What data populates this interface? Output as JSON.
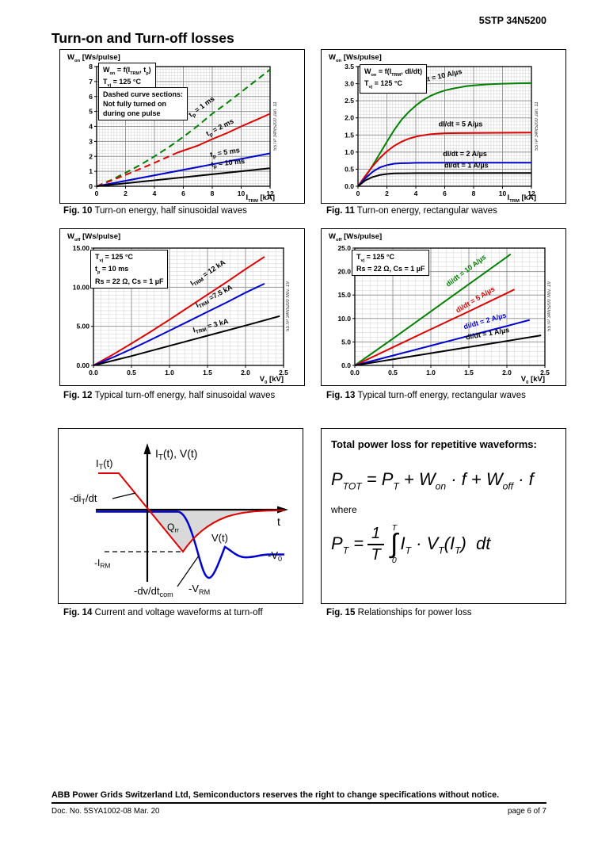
{
  "header": {
    "doc_number": "5STP 34N5200"
  },
  "page_title": "Turn-on and Turn-off losses",
  "chart_data": [
    {
      "id": "fig10",
      "type": "line",
      "fig_label": "Fig. 10",
      "caption": "Turn-on energy, half sinusoidal waves",
      "ylabel": "W~on~ [Ws/pulse]",
      "xlabel": "I~TRM~ [kA]",
      "xlim": [
        0,
        12
      ],
      "ylim": [
        0,
        8
      ],
      "xticks": [
        0,
        2,
        4,
        6,
        8,
        10,
        12
      ],
      "xtick_labels": [
        "0",
        "2",
        "4",
        "6",
        "8",
        "10",
        "12"
      ],
      "yticks": [
        0,
        1,
        2,
        3,
        4,
        5,
        6,
        7,
        8
      ],
      "ytick_labels": [
        "0",
        "1",
        "2",
        "3",
        "4",
        "5",
        "6",
        "7",
        "8"
      ],
      "xminor": 0.2,
      "yminor": 0.2,
      "grid": true,
      "notes": [
        [
          "W~on~ = f(I~TRM~, t~p~)",
          "T~vj~ = 125 °C"
        ],
        [
          "Dashed curve sections:",
          "Not fully turned on",
          "during one pulse"
        ]
      ],
      "side_text": "5STP 34N5200 Jan. 11",
      "series": [
        {
          "name": "tp = 1 ms",
          "color": "#008000",
          "dash": true,
          "points": [
            [
              0,
              0
            ],
            [
              1,
              0.42
            ],
            [
              2,
              0.9
            ],
            [
              3,
              1.42
            ],
            [
              4,
              2.0
            ],
            [
              5,
              2.62
            ],
            [
              6,
              3.3
            ],
            [
              7,
              4.05
            ],
            [
              8,
              4.85
            ],
            [
              9,
              5.55
            ],
            [
              10,
              6.3
            ],
            [
              11,
              7.05
            ],
            [
              12,
              7.8
            ]
          ]
        },
        {
          "name": "tp = 2 ms (not fully turned on)",
          "color": "#dd0000",
          "dash": true,
          "points": [
            [
              0,
              0
            ],
            [
              1,
              0.37
            ],
            [
              2,
              0.76
            ],
            [
              3,
              1.16
            ],
            [
              4,
              1.57
            ],
            [
              5,
              2.0
            ],
            [
              5.6,
              2.25
            ]
          ]
        },
        {
          "name": "tp = 2 ms",
          "color": "#dd0000",
          "dash": false,
          "points": [
            [
              5.6,
              2.25
            ],
            [
              7,
              2.72
            ],
            [
              8,
              3.15
            ],
            [
              9,
              3.55
            ],
            [
              10,
              4.0
            ],
            [
              11,
              4.42
            ],
            [
              12,
              4.85
            ]
          ]
        },
        {
          "name": "tp = 5 ms",
          "color": "#0000cc",
          "dash": false,
          "points": [
            [
              0,
              0
            ],
            [
              12,
              2.2
            ]
          ]
        },
        {
          "name": "tp = 10 ms",
          "color": "#000000",
          "dash": false,
          "points": [
            [
              0,
              0
            ],
            [
              12,
              1.2
            ]
          ]
        }
      ],
      "curve_labels": [
        {
          "text": "t~p~ = 1 ms",
          "x": 7.35,
          "y": 5.2,
          "rot": -36,
          "color": "#000000"
        },
        {
          "text": "t~p~ = 2 ms",
          "x": 8.6,
          "y": 3.8,
          "rot": -27,
          "color": "#000000"
        },
        {
          "text": "t~p~ = 5 ms",
          "x": 8.9,
          "y": 2.12,
          "rot": -9,
          "color": "#000000"
        },
        {
          "text": "t~p~ = 10 ms",
          "x": 9.1,
          "y": 1.42,
          "rot": -6,
          "color": "#000000"
        }
      ]
    },
    {
      "id": "fig11",
      "type": "line",
      "fig_label": "Fig. 11",
      "caption": "Turn-on energy, rectangular waves",
      "ylabel": "W~on~ [Ws/pulse]",
      "xlabel": "I~TRM~ [kA]",
      "xlim": [
        0,
        12
      ],
      "ylim": [
        0,
        3.5
      ],
      "xticks": [
        0,
        2,
        4,
        6,
        8,
        10,
        12
      ],
      "xtick_labels": [
        "0",
        "2",
        "4",
        "6",
        "8",
        "10",
        "12"
      ],
      "yticks": [
        0,
        0.5,
        1,
        1.5,
        2,
        2.5,
        3,
        3.5
      ],
      "ytick_labels": [
        "0.0",
        "0.5",
        "1.0",
        "1.5",
        "2.0",
        "2.5",
        "3.0",
        "3.5"
      ],
      "xminor": 0.2,
      "yminor": 0.1,
      "grid": true,
      "notes": [
        [
          "W~on~ = f(I~TRM~, dI/dt)",
          "T~vj~ = 125 °C"
        ]
      ],
      "side_text": "5STP 34N5200 Jan. 11",
      "series": [
        {
          "name": "dI/dt = 10 A/µs",
          "color": "#008000",
          "dash": false,
          "points": [
            [
              0,
              0
            ],
            [
              0.5,
              0.27
            ],
            [
              1,
              0.6
            ],
            [
              1.5,
              0.95
            ],
            [
              2,
              1.3
            ],
            [
              2.5,
              1.64
            ],
            [
              3,
              1.94
            ],
            [
              3.5,
              2.17
            ],
            [
              4,
              2.36
            ],
            [
              4.5,
              2.52
            ],
            [
              5,
              2.64
            ],
            [
              5.5,
              2.73
            ],
            [
              6,
              2.8
            ],
            [
              6.5,
              2.85
            ],
            [
              7,
              2.89
            ],
            [
              7.5,
              2.93
            ],
            [
              8,
              2.95
            ],
            [
              9,
              2.98
            ],
            [
              10,
              3.0
            ],
            [
              11,
              3.01
            ],
            [
              12,
              3.02
            ]
          ]
        },
        {
          "name": "dI/dt = 5 A/µs",
          "color": "#dd0000",
          "dash": false,
          "points": [
            [
              0,
              0
            ],
            [
              0.5,
              0.3
            ],
            [
              1,
              0.58
            ],
            [
              1.5,
              0.82
            ],
            [
              2,
              1.02
            ],
            [
              2.5,
              1.18
            ],
            [
              3,
              1.3
            ],
            [
              3.5,
              1.39
            ],
            [
              4,
              1.45
            ],
            [
              4.5,
              1.49
            ],
            [
              5,
              1.52
            ],
            [
              5.5,
              1.54
            ],
            [
              6,
              1.55
            ],
            [
              7,
              1.555
            ],
            [
              8,
              1.56
            ],
            [
              10,
              1.565
            ],
            [
              12,
              1.57
            ]
          ]
        },
        {
          "name": "dI/dt = 2 A/µs",
          "color": "#0000cc",
          "dash": false,
          "points": [
            [
              0,
              0
            ],
            [
              0.5,
              0.23
            ],
            [
              1,
              0.42
            ],
            [
              1.5,
              0.55
            ],
            [
              2,
              0.62
            ],
            [
              2.5,
              0.66
            ],
            [
              3,
              0.675
            ],
            [
              3.5,
              0.68
            ],
            [
              4,
              0.685
            ],
            [
              6,
              0.69
            ],
            [
              12,
              0.69
            ]
          ]
        },
        {
          "name": "dI/dt = 1 A/µs",
          "color": "#000000",
          "dash": false,
          "points": [
            [
              0,
              0
            ],
            [
              0.5,
              0.17
            ],
            [
              1,
              0.27
            ],
            [
              1.5,
              0.33
            ],
            [
              2,
              0.36
            ],
            [
              2.5,
              0.375
            ],
            [
              3,
              0.38
            ],
            [
              4,
              0.385
            ],
            [
              12,
              0.39
            ]
          ]
        }
      ],
      "curve_labels": [
        {
          "text": "dI/dt = 10 A/µs",
          "x": 5.6,
          "y": 3.14,
          "rot": -13,
          "color": "#000000"
        },
        {
          "text": "dI/dt = 5 A/µs",
          "x": 7.1,
          "y": 1.75,
          "rot": 0,
          "color": "#000000"
        },
        {
          "text": "dI/dt = 2 A/µs",
          "x": 7.4,
          "y": 0.88,
          "rot": 0,
          "color": "#000000"
        },
        {
          "text": "dI/dt = 1 A/µs",
          "x": 7.5,
          "y": 0.55,
          "rot": 0,
          "color": "#000000"
        }
      ]
    },
    {
      "id": "fig12",
      "type": "line",
      "fig_label": "Fig. 12",
      "caption": "Typical turn-off energy, half sinusoidal waves",
      "ylabel": "W~off~ [Ws/pulse]",
      "xlabel": "V~0~ [kV]",
      "xlim": [
        0,
        2.5
      ],
      "ylim": [
        0,
        15
      ],
      "xticks": [
        0,
        0.5,
        1,
        1.5,
        2,
        2.5
      ],
      "xtick_labels": [
        "0.0",
        "0.5",
        "1.0",
        "1.5",
        "2.0",
        "2.5"
      ],
      "yticks": [
        0,
        5,
        10,
        15
      ],
      "ytick_labels": [
        "0.00",
        "5.00",
        "10.00",
        "15.00"
      ],
      "xminor": 0.1,
      "yminor": 0.5,
      "grid": true,
      "notes": [
        [
          "T~vj~ = 125 °C",
          "t~p~ = 10 ms",
          "Rs = 22 Ω, Cs = 1 µF"
        ]
      ],
      "side_text": "5STP 34N5200 Nov. 19",
      "series": [
        {
          "name": "ITRM = 12 kA",
          "color": "#dd0000",
          "dash": false,
          "points": [
            [
              0,
              0
            ],
            [
              0.25,
              1.35
            ],
            [
              0.5,
              2.8
            ],
            [
              0.75,
              4.3
            ],
            [
              1,
              5.85
            ],
            [
              1.25,
              7.45
            ],
            [
              1.5,
              9.05
            ],
            [
              1.75,
              10.65
            ],
            [
              2,
              12.3
            ],
            [
              2.25,
              13.9
            ]
          ]
        },
        {
          "name": "ITRM = 7.5 kA",
          "color": "#0000cc",
          "dash": false,
          "points": [
            [
              0,
              0
            ],
            [
              0.25,
              1.0
            ],
            [
              0.5,
              2.1
            ],
            [
              0.75,
              3.25
            ],
            [
              1,
              4.45
            ],
            [
              1.25,
              5.65
            ],
            [
              1.5,
              6.85
            ],
            [
              1.75,
              8.05
            ],
            [
              2,
              9.3
            ],
            [
              2.25,
              10.45
            ]
          ]
        },
        {
          "name": "ITRM = 3 kA",
          "color": "#000000",
          "dash": false,
          "points": [
            [
              0,
              0
            ],
            [
              0.5,
              1.2
            ],
            [
              1,
              2.5
            ],
            [
              1.5,
              3.8
            ],
            [
              2,
              5.1
            ],
            [
              2.45,
              6.3
            ]
          ]
        }
      ],
      "curve_labels": [
        {
          "text": "I~TRM~ = 12 kA",
          "x": 1.52,
          "y": 11.6,
          "rot": -34,
          "color": "#000000"
        },
        {
          "text": "I~TRM~ =7.5 kA",
          "x": 1.6,
          "y": 8.6,
          "rot": -28,
          "color": "#000000"
        },
        {
          "text": "I~TRM~ = 3 kA",
          "x": 1.55,
          "y": 4.8,
          "rot": -15,
          "color": "#000000"
        }
      ]
    },
    {
      "id": "fig13",
      "type": "line",
      "fig_label": "Fig. 13",
      "caption": "Typical turn-off energy, rectangular waves",
      "ylabel": "W~off~ [Ws/pulse]",
      "xlabel": "V~0~ [kV]",
      "xlim": [
        0,
        2.5
      ],
      "ylim": [
        0,
        25
      ],
      "xticks": [
        0,
        0.5,
        1,
        1.5,
        2,
        2.5
      ],
      "xtick_labels": [
        "0.0",
        "0.5",
        "1.0",
        "1.5",
        "2.0",
        "2.5"
      ],
      "yticks": [
        0,
        5,
        10,
        15,
        20,
        25
      ],
      "ytick_labels": [
        "0.0",
        "5.0",
        "10.0",
        "15.0",
        "20.0",
        "25.0"
      ],
      "xminor": 0.1,
      "yminor": 1,
      "grid": true,
      "notes": [
        [
          "T~vj~ = 125 °C",
          "Rs = 22 Ω, Cs = 1 µF"
        ]
      ],
      "side_text": "5STP 34N5200 Nov. 19",
      "series": [
        {
          "name": "di/dt = 10 A/µs",
          "color": "#008000",
          "dash": false,
          "points": [
            [
              0,
              0
            ],
            [
              0.5,
              5.7
            ],
            [
              1,
              11.5
            ],
            [
              1.5,
              17.3
            ],
            [
              2,
              23.1
            ],
            [
              2.05,
              23.7
            ]
          ]
        },
        {
          "name": "di/dt = 5 A/µs",
          "color": "#dd0000",
          "dash": false,
          "points": [
            [
              0,
              0
            ],
            [
              0.5,
              3.85
            ],
            [
              1,
              7.7
            ],
            [
              1.5,
              11.5
            ],
            [
              2,
              15.4
            ],
            [
              2.1,
              16.2
            ]
          ]
        },
        {
          "name": "di/dt = 2 A/µs",
          "color": "#0000cc",
          "dash": false,
          "points": [
            [
              0,
              0
            ],
            [
              0.5,
              2.1
            ],
            [
              1,
              4.2
            ],
            [
              1.5,
              6.3
            ],
            [
              2,
              8.4
            ],
            [
              2.3,
              9.7
            ]
          ]
        },
        {
          "name": "di/dt = 1 A/µs",
          "color": "#000000",
          "dash": false,
          "points": [
            [
              0,
              0
            ],
            [
              0.5,
              1.3
            ],
            [
              1,
              2.6
            ],
            [
              1.5,
              3.9
            ],
            [
              2,
              5.2
            ],
            [
              2.45,
              6.4
            ]
          ]
        }
      ],
      "curve_labels": [
        {
          "text": "di/dt = 10 A/µs",
          "x": 1.48,
          "y": 19.8,
          "rot": -37,
          "color": "#008000"
        },
        {
          "text": "di/dt = 5 A/µs",
          "x": 1.6,
          "y": 13.6,
          "rot": -31,
          "color": "#dd0000"
        },
        {
          "text": "di/dt = 2 A/µs",
          "x": 1.72,
          "y": 9.0,
          "rot": -16,
          "color": "#0000cc"
        },
        {
          "text": "di/dt = 1 A/µs",
          "x": 1.75,
          "y": 6.3,
          "rot": -10,
          "color": "#000000"
        }
      ]
    }
  ],
  "fig14": {
    "fig_label": "Fig. 14",
    "caption": "Current and voltage waveforms at turn-off",
    "labels": {
      "axis_title": {
        "pre": "I",
        "sub": "T",
        "post": "(t), V(t)"
      },
      "current": {
        "pre": "I",
        "sub": "T",
        "post": "(t)"
      },
      "di_dt": {
        "pre": "-di",
        "sub": "T",
        "post": "/dt"
      },
      "qrr": {
        "pre": "Q",
        "sub": "rr",
        "post": ""
      },
      "irm": {
        "pre": "-I",
        "sub": "RM",
        "post": ""
      },
      "voltage": {
        "pre": "V(t)",
        "sub": "",
        "post": ""
      },
      "vrm": {
        "pre": "-V",
        "sub": "RM",
        "post": ""
      },
      "v0": {
        "pre": "-V",
        "sub": "0",
        "post": ""
      },
      "dv_dt": {
        "pre": "-dv/dt",
        "sub": "com",
        "post": ""
      },
      "time_axis": {
        "pre": "t",
        "sub": "",
        "post": ""
      }
    }
  },
  "fig15": {
    "fig_label": "Fig. 15",
    "caption": "Relationships for power loss",
    "title": "Total power loss for repetitive waveforms:",
    "formula1": "P~TOT~ = P~T~ + W~on~ · f + W~off~ · f",
    "where_label": "where",
    "formula2": {
      "lhs": "P~T~ =",
      "num": "1",
      "den": "T",
      "int_top": "T",
      "int_bottom": "0",
      "int_sign": "∫",
      "body": "I~T~ · V~T~(I~T~)  dt"
    }
  },
  "footer": {
    "notice": "ABB Power Grids Switzerland Ltd, Semiconductors reserves the right to change specifications without notice.",
    "doc_no": "Doc. No. 5SYA1002-08 Mar. 20",
    "page": "page 6 of 7"
  },
  "colors": {
    "green": "#008000",
    "red": "#dd0000",
    "blue": "#0000cc",
    "black": "#000000",
    "grid_minor": "#d0d0d0",
    "grid_major": "#999999"
  }
}
